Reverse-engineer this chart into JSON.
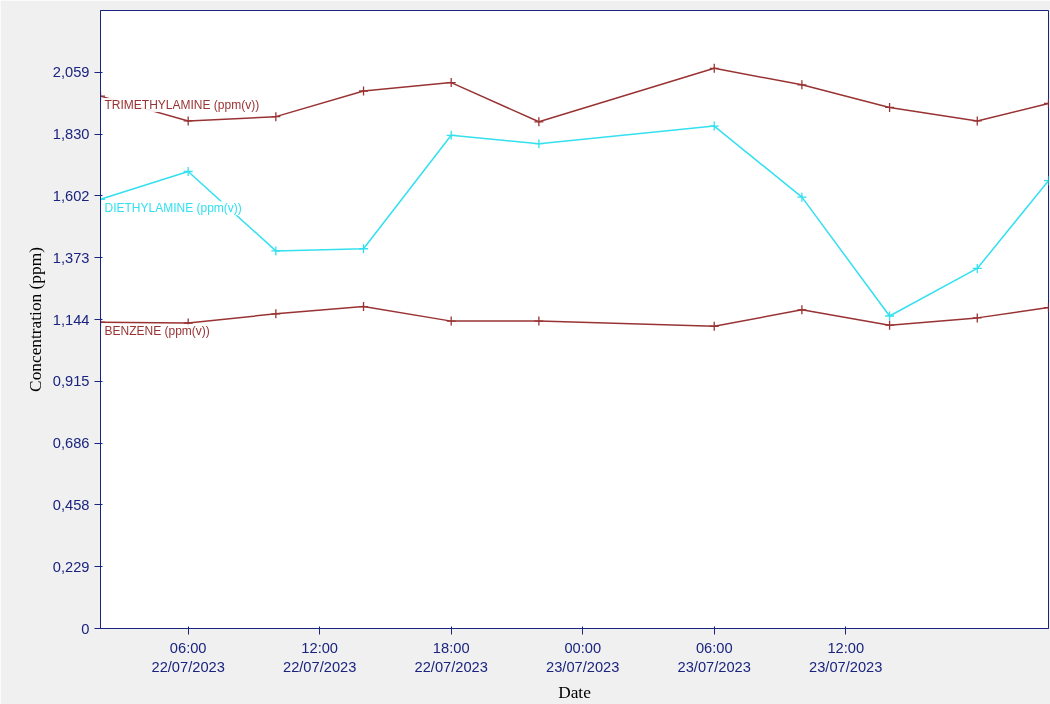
{
  "chart_data": {
    "type": "line",
    "xlabel": "Date",
    "ylabel": "Concentration (ppm)",
    "marker": "cross",
    "line_style": "solid",
    "grid": false,
    "x": [
      "2023-07-22T02:00",
      "2023-07-22T06:00",
      "2023-07-22T10:00",
      "2023-07-22T14:00",
      "2023-07-22T18:00",
      "2023-07-22T22:00",
      "2023-07-23T06:00",
      "2023-07-23T10:00",
      "2023-07-23T14:00",
      "2023-07-23T18:00",
      "2023-07-23T21:15"
    ],
    "xlim": [
      "2023-07-22T02:00",
      "2023-07-23T21:15"
    ],
    "xticks": [
      {
        "value": "2023-07-22T06:00",
        "label": "06:00\n22/07/2023"
      },
      {
        "value": "2023-07-22T12:00",
        "label": "12:00\n22/07/2023"
      },
      {
        "value": "2023-07-22T18:00",
        "label": "18:00\n22/07/2023"
      },
      {
        "value": "2023-07-23T00:00",
        "label": "00:00\n23/07/2023"
      },
      {
        "value": "2023-07-23T06:00",
        "label": "06:00\n23/07/2023"
      },
      {
        "value": "2023-07-23T12:00",
        "label": "12:00\n23/07/2023"
      }
    ],
    "ylim": [
      0,
      2.288
    ],
    "yticks": [
      0,
      {
        "value": 0.2288,
        "label": "0,229"
      },
      {
        "value": 0.4576,
        "label": "0,458"
      },
      {
        "value": 0.6864,
        "label": "0,686"
      },
      {
        "value": 0.9152,
        "label": "0,915"
      },
      {
        "value": 1.144,
        "label": "1,144"
      },
      {
        "value": 1.3728,
        "label": "1,373"
      },
      {
        "value": 1.6016,
        "label": "1,602"
      },
      {
        "value": 1.8304,
        "label": "1,830"
      },
      {
        "value": 2.0592,
        "label": "2,059"
      }
    ],
    "series": [
      {
        "name": "TRIMETHYLAMINE (ppm(v))",
        "color": "#993333",
        "values": [
          1.971,
          1.879,
          1.895,
          1.99,
          2.021,
          1.876,
          2.074,
          2.013,
          1.929,
          1.879,
          1.944
        ]
      },
      {
        "name": "DIETHYLAMINE (ppm(v))",
        "color": "#33e0f0",
        "values": [
          1.589,
          1.692,
          1.398,
          1.406,
          1.826,
          1.795,
          1.86,
          1.597,
          1.157,
          1.333,
          1.658
        ]
      },
      {
        "name": "BENZENE (ppm(v))",
        "color": "#993333",
        "values": [
          1.134,
          1.131,
          1.165,
          1.192,
          1.138,
          1.138,
          1.119,
          1.18,
          1.123,
          1.15,
          1.188
        ]
      }
    ]
  }
}
